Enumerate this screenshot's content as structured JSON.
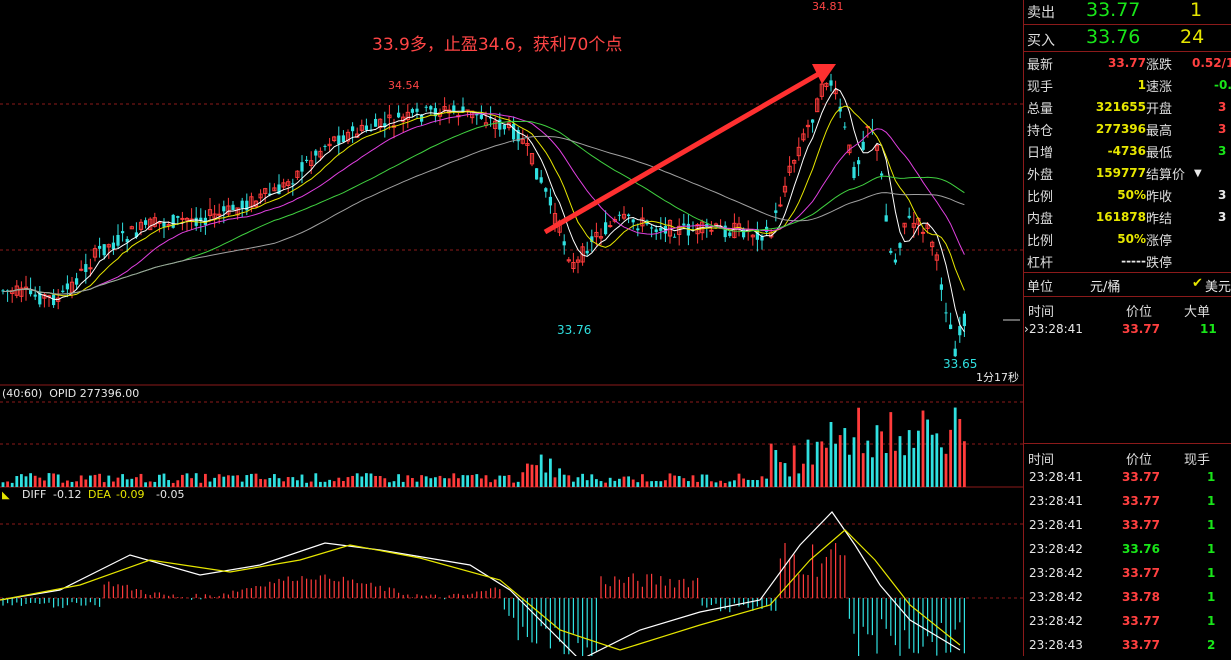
{
  "chart": {
    "annotation": "33.9多，止盈34.6，获利70个点",
    "price_labels": {
      "high_left": "34.54",
      "high_right": "34.81",
      "low_mid": "33.76",
      "low_right": "33.65"
    },
    "timer": "1分17秒",
    "oi_header": "(40:60)  OPID 277396.00",
    "macd_header": {
      "diff_label": "DIFF",
      "diff": "-0.12",
      "dea_label": "DEA",
      "dea": "-0.09",
      "macd": "-0.05"
    },
    "colors": {
      "up": "#ff3b3b",
      "down": "#30e0e0",
      "ma_white": "#ffffff",
      "ma_yellow": "#e6e600",
      "ma_magenta": "#e040e0",
      "ma_green": "#40d040",
      "ma_gray": "#a0a0a0",
      "grid": "#8b1a1a"
    }
  },
  "quote": {
    "ask": {
      "label": "卖出",
      "price": "33.77",
      "vol": "1"
    },
    "bid": {
      "label": "买入",
      "price": "33.76",
      "vol": "24"
    },
    "rows": [
      {
        "l1": "最新",
        "v1": "33.77",
        "l2": "涨跌",
        "v2": "0.52/1."
      },
      {
        "l1": "现手",
        "v1": "1",
        "l2": "速涨",
        "v2": "-0."
      },
      {
        "l1": "总量",
        "v1": "321655",
        "l2": "开盘",
        "v2": "3"
      },
      {
        "l1": "持仓",
        "v1": "277396",
        "l2": "最高",
        "v2": "3"
      },
      {
        "l1": "日增",
        "v1": "-4736",
        "l2": "最低",
        "v2": "3"
      },
      {
        "l1": "外盘",
        "v1": "159777",
        "l2": "结算价",
        "v2": ""
      },
      {
        "l1": "比例",
        "v1": "50%",
        "l2": "昨收",
        "v2": "3"
      },
      {
        "l1": "内盘",
        "v1": "161878",
        "l2": "昨结",
        "v2": "3"
      },
      {
        "l1": "比例",
        "v1": "50%",
        "l2": "涨停",
        "v2": ""
      },
      {
        "l1": "杠杆",
        "v1": "-----",
        "l2": "跌停",
        "v2": ""
      }
    ],
    "unit": {
      "label": "单位",
      "value": "元/桶",
      "alt": "美元"
    },
    "big_order_header": {
      "time": "时间",
      "price": "价位",
      "size": "大单"
    },
    "big_order": {
      "time": "23:28:41",
      "price": "33.77",
      "size": "11"
    },
    "ticks_header": {
      "time": "时间",
      "price": "价位",
      "size": "现手"
    },
    "ticks": [
      {
        "time": "23:28:41",
        "price": "33.77",
        "size": "1"
      },
      {
        "time": "23:28:41",
        "price": "33.77",
        "size": "1"
      },
      {
        "time": "23:28:41",
        "price": "33.77",
        "size": "1"
      },
      {
        "time": "23:28:42",
        "price": "33.76",
        "size": "1"
      },
      {
        "time": "23:28:42",
        "price": "33.77",
        "size": "1"
      },
      {
        "time": "23:28:42",
        "price": "33.78",
        "size": "1"
      },
      {
        "time": "23:28:42",
        "price": "33.77",
        "size": "1"
      },
      {
        "time": "23:28:43",
        "price": "33.77",
        "size": "2"
      }
    ]
  }
}
